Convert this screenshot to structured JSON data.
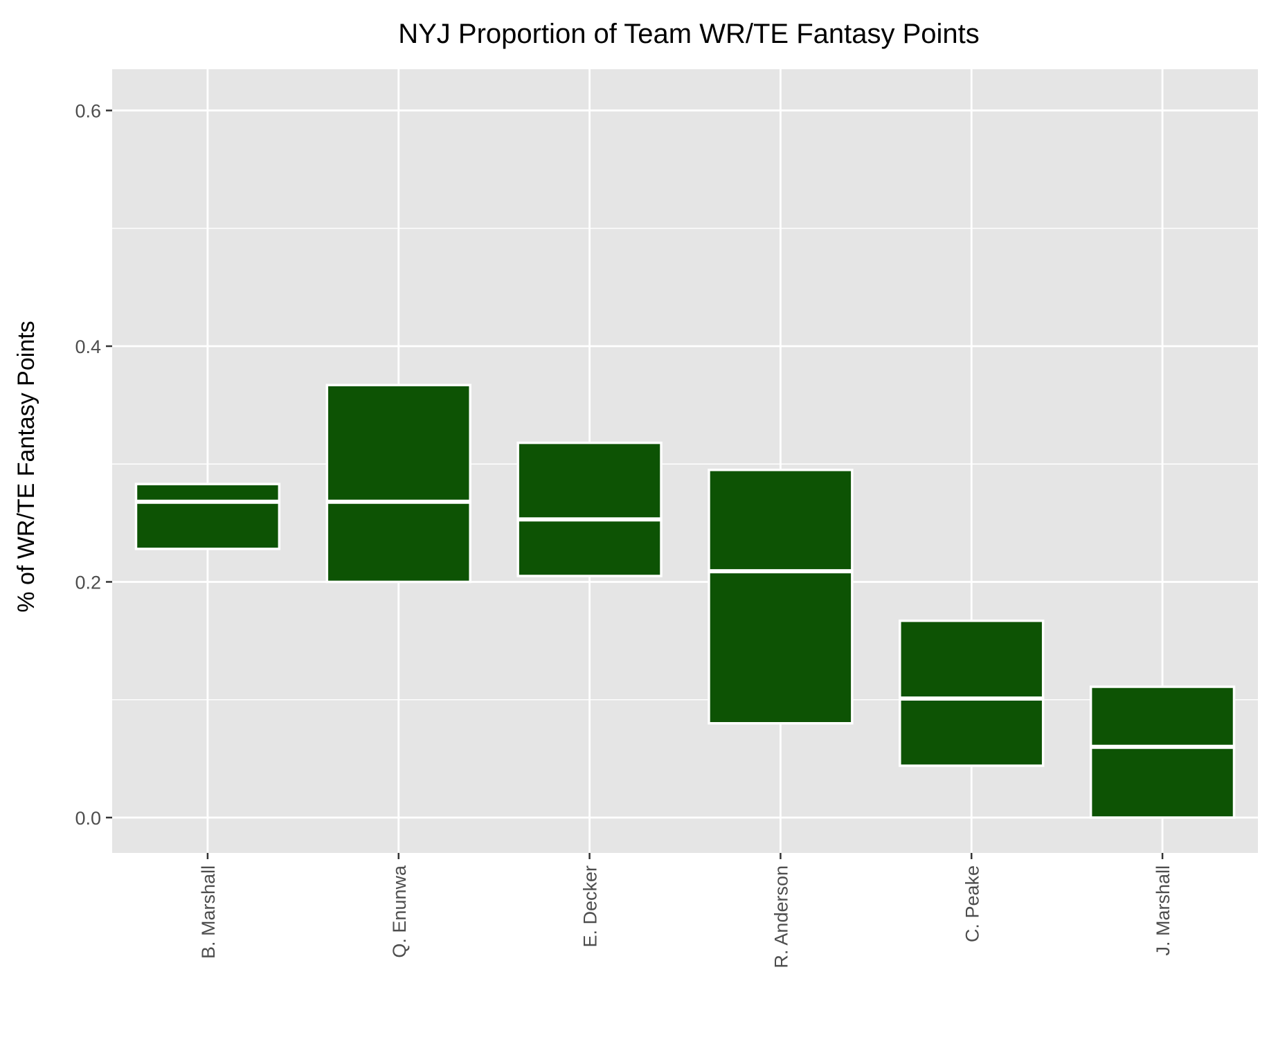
{
  "chart_data": {
    "type": "boxplot",
    "title": "NYJ Proportion of Team WR/TE Fantasy Points",
    "xlabel": "",
    "ylabel": "% of WR/TE Fantasy Points",
    "ylim": [
      -0.03,
      0.635
    ],
    "y_ticks": [
      0.0,
      0.2,
      0.4,
      0.6
    ],
    "y_tick_labels": [
      "0.0",
      "0.2",
      "0.4",
      "0.6"
    ],
    "grid": true,
    "categories": [
      "B. Marshall",
      "Q. Enunwa",
      "E. Decker",
      "R. Anderson",
      "C. Peake",
      "J. Marshall"
    ],
    "boxes": [
      {
        "name": "B. Marshall",
        "lower": 0.228,
        "median": 0.268,
        "upper": 0.283
      },
      {
        "name": "Q. Enunwa",
        "lower": 0.2,
        "median": 0.268,
        "upper": 0.367
      },
      {
        "name": "E. Decker",
        "lower": 0.205,
        "median": 0.253,
        "upper": 0.318
      },
      {
        "name": "R. Anderson",
        "lower": 0.08,
        "median": 0.209,
        "upper": 0.295
      },
      {
        "name": "C. Peake",
        "lower": 0.044,
        "median": 0.101,
        "upper": 0.167
      },
      {
        "name": "J. Marshall",
        "lower": 0.0,
        "median": 0.06,
        "upper": 0.111
      }
    ],
    "colors": {
      "fill": "#0d5304",
      "outline": "#ffffff",
      "panel": "#e5e5e5",
      "grid": "#ffffff",
      "tick_mark": "#333333"
    }
  }
}
